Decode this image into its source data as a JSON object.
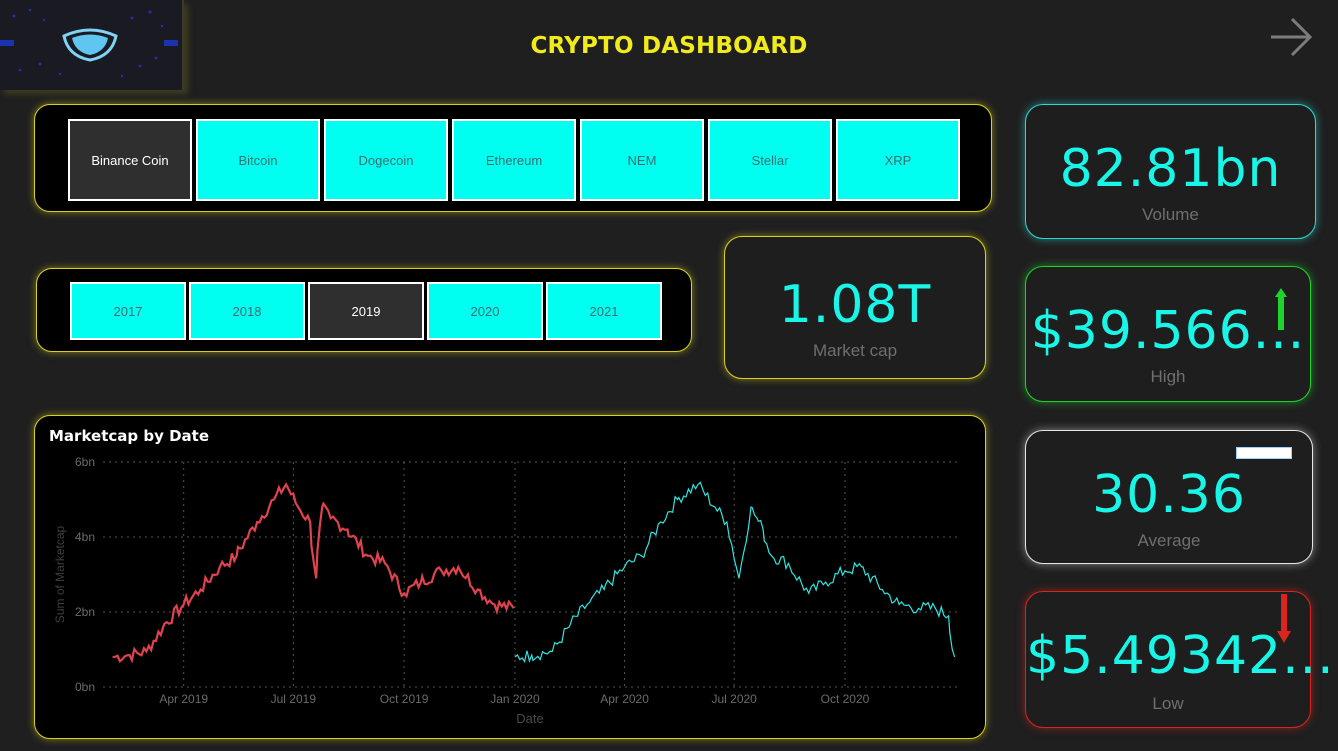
{
  "header": {
    "title": "CRYPTO DASHBOARD"
  },
  "coins": {
    "items": [
      {
        "label": "Binance Coin",
        "selected": true
      },
      {
        "label": "Bitcoin",
        "selected": false
      },
      {
        "label": "Dogecoin",
        "selected": false
      },
      {
        "label": "Ethereum",
        "selected": false
      },
      {
        "label": "NEM",
        "selected": false
      },
      {
        "label": "Stellar",
        "selected": false
      },
      {
        "label": "XRP",
        "selected": false
      }
    ]
  },
  "years": {
    "items": [
      {
        "label": "2017",
        "selected": false
      },
      {
        "label": "2018",
        "selected": false
      },
      {
        "label": "2019",
        "selected": true
      },
      {
        "label": "2020",
        "selected": false
      },
      {
        "label": "2021",
        "selected": false
      }
    ]
  },
  "cards": {
    "market_cap": {
      "value": "1.08T",
      "label": "Market cap"
    },
    "volume": {
      "value": "82.81bn",
      "label": "Volume"
    },
    "high": {
      "value": "$39.566...",
      "label": "High",
      "indicator": "up-arrow-icon"
    },
    "average": {
      "value": "30.36",
      "label": "Average",
      "indicator": "flat-bar-icon"
    },
    "low": {
      "value": "$5.49342...",
      "label": "Low",
      "indicator": "down-arrow-icon"
    }
  },
  "colors": {
    "accent_yellow": "#f1ea1d",
    "value_cyan": "#19f5e7",
    "series_2019": "#e0424f",
    "series_2020": "#2ee6e0",
    "up": "#1ed42a",
    "down": "#d8261e"
  },
  "chart_data": {
    "type": "line",
    "title": "Marketcap by Date",
    "xlabel": "Date",
    "ylabel": "Sum of Marketcap",
    "y_ticks": [
      "0bn",
      "2bn",
      "4bn",
      "6bn"
    ],
    "x_ticks": [
      "Apr 2019",
      "Jul 2019",
      "Oct 2019",
      "Jan 2020",
      "Apr 2020",
      "Jul 2020",
      "Oct 2020"
    ],
    "ylim": [
      0,
      6
    ],
    "grid": true,
    "series": [
      {
        "color": "#e0424f",
        "x": [
          "2019-02-01",
          "2019-02-15",
          "2019-03-01",
          "2019-03-15",
          "2019-04-01",
          "2019-04-15",
          "2019-05-01",
          "2019-05-15",
          "2019-06-01",
          "2019-06-15",
          "2019-06-25",
          "2019-07-05",
          "2019-07-15",
          "2019-07-20",
          "2019-07-25",
          "2019-08-01",
          "2019-08-15",
          "2019-09-01",
          "2019-09-15",
          "2019-10-01",
          "2019-10-15",
          "2019-11-01",
          "2019-11-15",
          "2019-12-01",
          "2019-12-15",
          "2019-12-31"
        ],
        "values": [
          0.8,
          0.85,
          0.95,
          1.6,
          2.2,
          2.6,
          3.2,
          3.5,
          4.4,
          5.0,
          5.4,
          4.8,
          4.4,
          2.9,
          4.8,
          4.5,
          4.2,
          3.5,
          3.3,
          2.5,
          2.8,
          3.1,
          3.2,
          2.6,
          2.2,
          2.1
        ]
      },
      {
        "color": "#2ee6e0",
        "x": [
          "2020-01-01",
          "2020-01-15",
          "2020-02-01",
          "2020-02-15",
          "2020-03-01",
          "2020-03-15",
          "2020-04-01",
          "2020-04-15",
          "2020-05-01",
          "2020-05-15",
          "2020-06-01",
          "2020-06-15",
          "2020-06-25",
          "2020-07-05",
          "2020-07-15",
          "2020-07-20",
          "2020-07-25",
          "2020-08-01",
          "2020-08-15",
          "2020-09-01",
          "2020-09-15",
          "2020-10-01",
          "2020-10-15",
          "2020-11-01",
          "2020-11-15",
          "2020-12-01",
          "2020-12-15",
          "2020-12-26",
          "2020-12-31"
        ],
        "values": [
          0.8,
          0.85,
          0.95,
          1.6,
          2.2,
          2.6,
          3.2,
          3.5,
          4.4,
          5.0,
          5.4,
          4.8,
          4.4,
          2.9,
          4.8,
          4.5,
          4.2,
          3.5,
          3.3,
          2.5,
          2.8,
          3.1,
          3.2,
          2.6,
          2.2,
          2.1,
          2.1,
          1.9,
          0.8
        ]
      }
    ]
  }
}
